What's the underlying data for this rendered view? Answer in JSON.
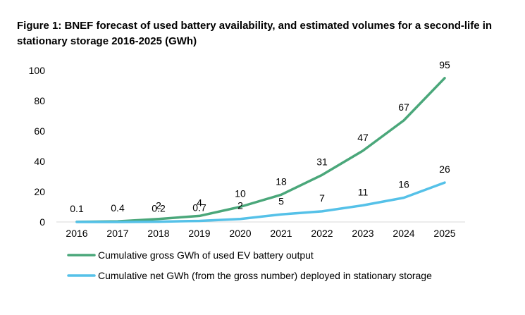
{
  "chart_data": {
    "type": "line",
    "title": "Figure 1:   BNEF forecast of used battery availability, and estimated volumes for a second-life in stationary storage 2016-2025 (GWh)",
    "categories": [
      "2016",
      "2017",
      "2018",
      "2019",
      "2020",
      "2021",
      "2022",
      "2023",
      "2024",
      "2025"
    ],
    "series": [
      {
        "name": "Cumulative gross GWh of used EV battery output",
        "values": [
          0.1,
          0.4,
          2,
          4,
          10,
          18,
          31,
          47,
          67,
          95
        ],
        "labels": [
          "0.1",
          "0.4",
          "2",
          "4",
          "10",
          "18",
          "31",
          "47",
          "67",
          "95"
        ],
        "color": "#4aa77a"
      },
      {
        "name": "Cumulative net GWh (from the gross number) deployed in stationary storage",
        "values": [
          0,
          0,
          0.2,
          0.7,
          2,
          5,
          7,
          11,
          16,
          26
        ],
        "labels": [
          "",
          "",
          "0.2",
          "0.7",
          "2",
          "5",
          "7",
          "11",
          "16",
          "26"
        ],
        "color": "#55c1e8"
      }
    ],
    "yticks": [
      "0",
      "20",
      "40",
      "60",
      "80",
      "100"
    ],
    "ylim": [
      0,
      100
    ],
    "grid": false,
    "legend_position": "bottom"
  }
}
